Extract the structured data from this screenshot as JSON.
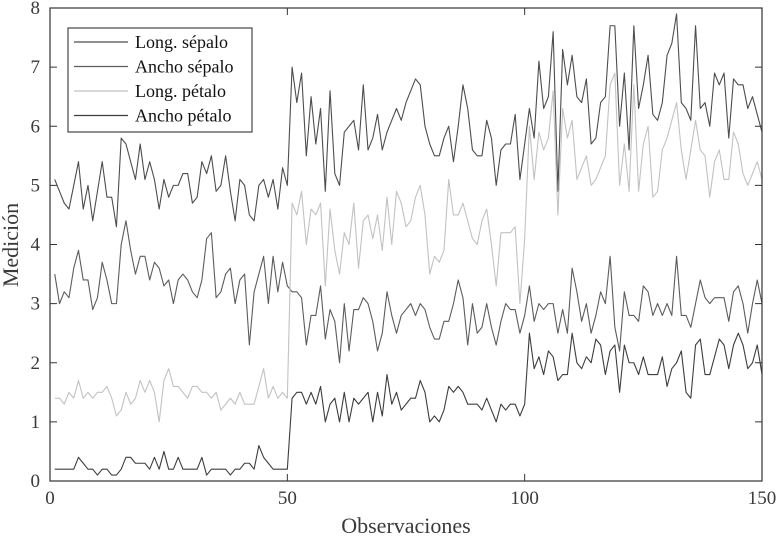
{
  "chart_data": {
    "type": "line",
    "xlabel": "Observaciones",
    "ylabel": "Medición",
    "xlim": [
      0,
      150
    ],
    "ylim": [
      0,
      8
    ],
    "xticks": [
      0,
      50,
      100,
      150
    ],
    "yticks": [
      0,
      1,
      2,
      3,
      4,
      5,
      6,
      7,
      8
    ],
    "grid": false,
    "legend_position": "top-left",
    "x": [
      1,
      2,
      3,
      4,
      5,
      6,
      7,
      8,
      9,
      10,
      11,
      12,
      13,
      14,
      15,
      16,
      17,
      18,
      19,
      20,
      21,
      22,
      23,
      24,
      25,
      26,
      27,
      28,
      29,
      30,
      31,
      32,
      33,
      34,
      35,
      36,
      37,
      38,
      39,
      40,
      41,
      42,
      43,
      44,
      45,
      46,
      47,
      48,
      49,
      50,
      51,
      52,
      53,
      54,
      55,
      56,
      57,
      58,
      59,
      60,
      61,
      62,
      63,
      64,
      65,
      66,
      67,
      68,
      69,
      70,
      71,
      72,
      73,
      74,
      75,
      76,
      77,
      78,
      79,
      80,
      81,
      82,
      83,
      84,
      85,
      86,
      87,
      88,
      89,
      90,
      91,
      92,
      93,
      94,
      95,
      96,
      97,
      98,
      99,
      100,
      101,
      102,
      103,
      104,
      105,
      106,
      107,
      108,
      109,
      110,
      111,
      112,
      113,
      114,
      115,
      116,
      117,
      118,
      119,
      120,
      121,
      122,
      123,
      124,
      125,
      126,
      127,
      128,
      129,
      130,
      131,
      132,
      133,
      134,
      135,
      136,
      137,
      138,
      139,
      140,
      141,
      142,
      143,
      144,
      145,
      146,
      147,
      148,
      149,
      150
    ],
    "series": [
      {
        "name": "Long. sépalo",
        "color": "#4d4d4d",
        "values": [
          5.1,
          4.9,
          4.7,
          4.6,
          5.0,
          5.4,
          4.6,
          5.0,
          4.4,
          4.9,
          5.4,
          4.8,
          4.8,
          4.3,
          5.8,
          5.7,
          5.4,
          5.1,
          5.7,
          5.1,
          5.4,
          5.1,
          4.6,
          5.1,
          4.8,
          5.0,
          5.0,
          5.2,
          5.2,
          4.7,
          4.8,
          5.4,
          5.2,
          5.5,
          4.9,
          5.0,
          5.5,
          4.9,
          4.4,
          5.1,
          5.0,
          4.5,
          4.4,
          5.0,
          5.1,
          4.8,
          5.1,
          4.6,
          5.3,
          5.0,
          7.0,
          6.4,
          6.9,
          5.5,
          6.5,
          5.7,
          6.3,
          4.9,
          6.6,
          5.2,
          5.0,
          5.9,
          6.0,
          6.1,
          5.6,
          6.7,
          5.6,
          5.8,
          6.2,
          5.6,
          5.9,
          6.1,
          6.3,
          6.1,
          6.4,
          6.6,
          6.8,
          6.7,
          6.0,
          5.7,
          5.5,
          5.5,
          5.8,
          6.0,
          5.4,
          6.0,
          6.7,
          6.3,
          5.6,
          5.5,
          5.5,
          6.1,
          5.8,
          5.0,
          5.6,
          5.7,
          5.7,
          6.2,
          5.1,
          5.7,
          6.3,
          5.8,
          7.1,
          6.3,
          6.5,
          7.6,
          4.9,
          7.3,
          6.7,
          7.2,
          6.5,
          6.4,
          6.8,
          5.7,
          5.8,
          6.4,
          6.5,
          7.7,
          7.7,
          6.0,
          6.9,
          5.6,
          7.7,
          6.3,
          6.7,
          7.2,
          6.2,
          6.1,
          6.4,
          7.2,
          7.4,
          7.9,
          6.4,
          6.3,
          6.1,
          7.7,
          6.3,
          6.4,
          6.0,
          6.9,
          6.7,
          6.9,
          5.8,
          6.8,
          6.7,
          6.7,
          6.3,
          6.5,
          6.2,
          5.9
        ]
      },
      {
        "name": "Ancho sépalo",
        "color": "#5c5c5c",
        "values": [
          3.5,
          3.0,
          3.2,
          3.1,
          3.6,
          3.9,
          3.4,
          3.4,
          2.9,
          3.1,
          3.7,
          3.4,
          3.0,
          3.0,
          4.0,
          4.4,
          3.9,
          3.5,
          3.8,
          3.8,
          3.4,
          3.7,
          3.6,
          3.3,
          3.4,
          3.0,
          3.4,
          3.5,
          3.4,
          3.2,
          3.1,
          3.4,
          4.1,
          4.2,
          3.1,
          3.2,
          3.5,
          3.6,
          3.0,
          3.4,
          3.5,
          2.3,
          3.2,
          3.5,
          3.8,
          3.0,
          3.8,
          3.2,
          3.7,
          3.3,
          3.2,
          3.2,
          3.1,
          2.3,
          2.8,
          2.8,
          3.3,
          2.4,
          2.9,
          2.7,
          2.0,
          3.0,
          2.2,
          2.9,
          2.9,
          3.1,
          3.0,
          2.7,
          2.2,
          2.5,
          3.2,
          2.8,
          2.5,
          2.8,
          2.9,
          3.0,
          2.8,
          3.0,
          2.9,
          2.6,
          2.4,
          2.4,
          2.7,
          2.7,
          3.0,
          3.4,
          3.1,
          2.3,
          3.0,
          2.5,
          2.6,
          3.0,
          2.6,
          2.3,
          2.7,
          3.0,
          2.9,
          2.9,
          2.5,
          2.8,
          3.3,
          2.7,
          3.0,
          2.9,
          3.0,
          3.0,
          2.5,
          2.9,
          2.5,
          3.6,
          3.2,
          2.7,
          3.0,
          2.5,
          2.8,
          3.2,
          3.0,
          3.8,
          2.6,
          2.2,
          3.2,
          2.8,
          2.8,
          2.7,
          3.3,
          3.2,
          2.8,
          3.0,
          2.8,
          3.0,
          2.8,
          3.8,
          2.8,
          2.8,
          2.6,
          3.0,
          3.4,
          3.1,
          3.0,
          3.1,
          3.1,
          3.1,
          2.7,
          3.2,
          3.3,
          3.0,
          2.5,
          3.0,
          3.4,
          3.0
        ]
      },
      {
        "name": "Long. pétalo",
        "color": "#c2c2c2",
        "values": [
          1.4,
          1.4,
          1.3,
          1.5,
          1.4,
          1.7,
          1.4,
          1.5,
          1.4,
          1.5,
          1.5,
          1.6,
          1.4,
          1.1,
          1.2,
          1.5,
          1.3,
          1.4,
          1.7,
          1.5,
          1.7,
          1.5,
          1.0,
          1.7,
          1.9,
          1.6,
          1.6,
          1.5,
          1.4,
          1.6,
          1.6,
          1.5,
          1.5,
          1.4,
          1.5,
          1.2,
          1.3,
          1.4,
          1.3,
          1.5,
          1.3,
          1.3,
          1.3,
          1.6,
          1.9,
          1.4,
          1.6,
          1.4,
          1.5,
          1.4,
          4.7,
          4.5,
          4.9,
          4.0,
          4.6,
          4.5,
          4.7,
          3.3,
          4.6,
          3.9,
          3.5,
          4.2,
          4.0,
          4.7,
          3.6,
          4.4,
          4.5,
          4.1,
          4.5,
          3.9,
          4.8,
          4.0,
          4.9,
          4.7,
          4.3,
          4.4,
          4.8,
          5.0,
          4.5,
          3.5,
          3.8,
          3.7,
          3.9,
          5.1,
          4.5,
          4.5,
          4.7,
          4.4,
          4.1,
          4.0,
          4.4,
          4.6,
          4.0,
          3.3,
          4.2,
          4.2,
          4.2,
          4.3,
          3.0,
          4.1,
          6.0,
          5.1,
          5.9,
          5.6,
          5.8,
          6.6,
          4.5,
          6.3,
          5.8,
          6.1,
          5.1,
          5.3,
          5.5,
          5.0,
          5.1,
          5.3,
          5.5,
          6.7,
          6.9,
          5.0,
          5.7,
          4.9,
          6.7,
          4.9,
          5.7,
          6.0,
          4.8,
          4.9,
          5.6,
          5.8,
          6.1,
          6.4,
          5.6,
          5.1,
          5.6,
          6.1,
          5.6,
          5.5,
          4.8,
          5.4,
          5.6,
          5.1,
          5.1,
          5.9,
          5.7,
          5.2,
          5.0,
          5.2,
          5.4,
          5.1
        ]
      },
      {
        "name": "Ancho pétalo",
        "color": "#3d3d3d",
        "values": [
          0.2,
          0.2,
          0.2,
          0.2,
          0.2,
          0.4,
          0.3,
          0.2,
          0.2,
          0.1,
          0.2,
          0.2,
          0.1,
          0.1,
          0.2,
          0.4,
          0.4,
          0.3,
          0.3,
          0.3,
          0.2,
          0.4,
          0.2,
          0.5,
          0.2,
          0.2,
          0.4,
          0.2,
          0.2,
          0.2,
          0.2,
          0.4,
          0.1,
          0.2,
          0.2,
          0.2,
          0.2,
          0.1,
          0.2,
          0.2,
          0.3,
          0.3,
          0.2,
          0.6,
          0.4,
          0.3,
          0.2,
          0.2,
          0.2,
          0.2,
          1.4,
          1.5,
          1.5,
          1.3,
          1.5,
          1.3,
          1.6,
          1.0,
          1.3,
          1.4,
          1.0,
          1.5,
          1.0,
          1.4,
          1.3,
          1.4,
          1.5,
          1.0,
          1.5,
          1.1,
          1.8,
          1.3,
          1.5,
          1.2,
          1.3,
          1.4,
          1.4,
          1.7,
          1.5,
          1.0,
          1.1,
          1.0,
          1.2,
          1.6,
          1.5,
          1.6,
          1.5,
          1.3,
          1.3,
          1.3,
          1.2,
          1.4,
          1.2,
          1.0,
          1.3,
          1.2,
          1.3,
          1.3,
          1.1,
          1.3,
          2.5,
          1.9,
          2.1,
          1.8,
          2.2,
          2.1,
          1.7,
          1.8,
          1.8,
          2.5,
          2.0,
          1.9,
          2.1,
          2.0,
          2.4,
          2.3,
          1.8,
          2.2,
          2.3,
          1.5,
          2.3,
          2.0,
          2.0,
          1.8,
          2.1,
          1.8,
          1.8,
          1.8,
          2.1,
          1.6,
          1.9,
          2.0,
          2.2,
          1.5,
          1.4,
          2.3,
          2.4,
          1.8,
          1.8,
          2.1,
          2.4,
          2.3,
          1.9,
          2.3,
          2.5,
          2.3,
          1.9,
          2.0,
          2.3,
          1.8
        ]
      }
    ]
  }
}
